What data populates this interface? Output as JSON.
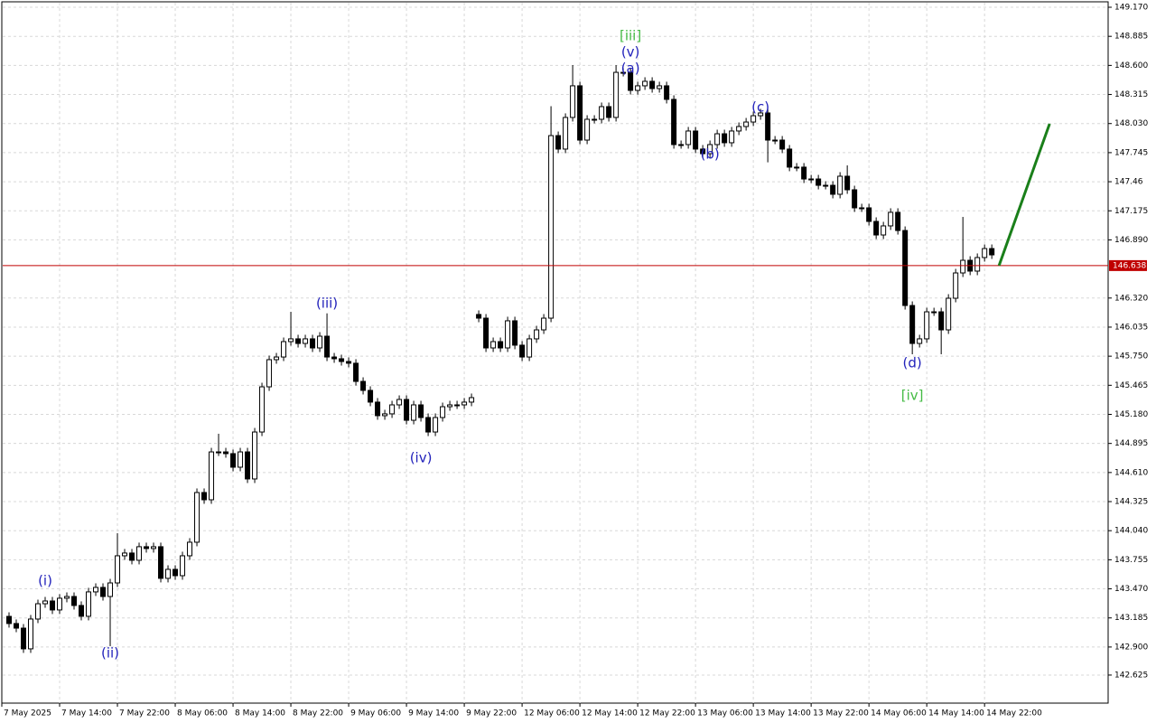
{
  "chart_data": {
    "type": "candlestick",
    "categories": [
      "7 May 2025",
      null,
      null,
      null,
      null,
      null,
      null,
      null,
      "7 May 14:00",
      null,
      null,
      null,
      null,
      null,
      null,
      null,
      "7 May 22:00",
      null,
      null,
      null,
      null,
      null,
      null,
      null,
      "8 May 06:00",
      null,
      null,
      null,
      null,
      null,
      null,
      null,
      "8 May 14:00",
      null,
      null,
      null,
      null,
      null,
      null,
      null,
      "8 May 22:00",
      null,
      null,
      null,
      null,
      null,
      null,
      null,
      "9 May 06:00",
      null,
      null,
      null,
      null,
      null,
      null,
      null,
      "9 May 14:00",
      null,
      null,
      null,
      null,
      null,
      null,
      null,
      "9 May 22:00",
      null,
      null,
      null,
      null,
      null,
      null,
      null,
      "12 May 06:00",
      null,
      null,
      null,
      null,
      null,
      null,
      null,
      "12 May 14:00",
      null,
      null,
      null,
      null,
      null,
      null,
      null,
      "12 May 22:00",
      null,
      null,
      null,
      null,
      null,
      null,
      null,
      "13 May 06:00",
      null,
      null,
      null,
      null,
      null,
      null,
      null,
      "13 May 14:00",
      null,
      null,
      null,
      null,
      null,
      null,
      null,
      "13 May 22:00",
      null,
      null,
      null,
      null,
      null,
      null,
      null,
      "14 May 06:00",
      null,
      null,
      null,
      null,
      null,
      null,
      null,
      "14 May 14:00",
      null,
      null,
      null,
      null,
      null,
      null,
      null,
      "14 May 22:00",
      null
    ],
    "open": [
      null,
      143.2,
      143.13,
      143.085,
      142.882,
      143.174,
      143.324,
      143.351,
      143.263,
      143.378,
      143.395,
      143.307,
      143.201,
      143.44,
      143.484,
      143.395,
      143.528,
      143.794,
      143.821,
      143.75,
      143.883,
      143.865,
      143.883,
      143.573,
      143.661,
      143.599,
      143.794,
      143.927,
      144.414,
      144.343,
      144.812,
      144.812,
      144.795,
      144.662,
      144.812,
      144.547,
      145.007,
      145.45,
      145.716,
      145.742,
      145.893,
      145.92,
      145.875,
      145.92,
      145.831,
      145.946,
      145.742,
      145.725,
      145.698,
      145.681,
      145.503,
      145.415,
      145.3,
      145.167,
      145.185,
      145.273,
      145.326,
      145.122,
      145.273,
      145.149,
      145.007,
      145.149,
      145.255,
      145.273,
      145.273,
      145.3,
      146.159,
      146.123,
      145.831,
      145.893,
      145.831,
      146.097,
      145.858,
      145.742,
      145.92,
      146.008,
      146.123,
      147.912,
      147.78,
      148.09,
      148.4,
      147.868,
      148.072,
      148.072,
      148.196,
      148.09,
      148.532,
      148.532,
      148.355,
      148.4,
      148.444,
      148.373,
      148.4,
      148.267,
      147.824,
      147.824,
      147.957,
      147.78,
      147.735,
      147.824,
      147.93,
      147.842,
      147.957,
      148.001,
      148.045,
      148.107,
      148.134,
      147.868,
      147.868,
      147.78,
      147.603,
      147.603,
      147.487,
      147.487,
      147.425,
      147.425,
      147.337,
      147.514,
      147.381,
      147.204,
      147.204,
      147.071,
      146.938,
      147.027,
      147.16,
      146.982,
      146.247,
      145.875,
      145.92,
      146.185,
      146.185,
      146.008,
      146.318,
      146.566,
      146.69,
      146.584,
      146.717,
      146.805
    ],
    "high": [
      null,
      143.24,
      143.17,
      143.125,
      143.214,
      143.364,
      143.391,
      143.391,
      143.418,
      143.435,
      143.435,
      143.347,
      143.48,
      143.524,
      143.524,
      143.568,
      144.015,
      143.861,
      143.861,
      143.923,
      143.923,
      143.923,
      143.923,
      143.701,
      143.701,
      143.834,
      143.967,
      144.454,
      144.454,
      144.852,
      144.99,
      144.852,
      144.835,
      144.852,
      144.852,
      145.047,
      145.49,
      145.756,
      145.782,
      145.933,
      146.185,
      145.96,
      145.96,
      145.96,
      145.986,
      146.17,
      145.782,
      145.765,
      145.738,
      145.721,
      145.543,
      145.455,
      145.34,
      145.225,
      145.313,
      145.366,
      145.366,
      145.313,
      145.313,
      145.189,
      145.189,
      145.295,
      145.313,
      145.313,
      145.34,
      145.384,
      146.199,
      146.163,
      145.933,
      145.933,
      146.137,
      146.137,
      145.898,
      145.96,
      146.048,
      146.163,
      148.2,
      147.952,
      148.13,
      148.603,
      148.44,
      148.112,
      148.112,
      148.236,
      148.236,
      148.603,
      148.572,
      148.572,
      148.44,
      148.484,
      148.484,
      148.44,
      148.44,
      148.307,
      147.864,
      147.997,
      147.997,
      147.82,
      147.864,
      147.97,
      147.97,
      147.997,
      148.041,
      148.085,
      148.147,
      148.174,
      148.174,
      147.908,
      147.908,
      147.82,
      147.643,
      147.643,
      147.527,
      147.527,
      147.465,
      147.465,
      147.554,
      147.62,
      147.421,
      147.244,
      147.244,
      147.111,
      147.067,
      147.2,
      147.2,
      147.022,
      146.287,
      145.96,
      146.225,
      146.225,
      146.225,
      146.358,
      146.606,
      147.115,
      146.73,
      146.757,
      146.845,
      146.845
    ],
    "low": [
      null,
      143.09,
      143.045,
      142.842,
      142.842,
      143.134,
      143.284,
      143.223,
      143.223,
      143.338,
      143.267,
      143.161,
      143.161,
      143.4,
      143.355,
      142.908,
      143.488,
      143.754,
      143.71,
      143.71,
      143.825,
      143.825,
      143.533,
      143.533,
      143.559,
      143.559,
      143.754,
      143.887,
      144.303,
      144.303,
      144.772,
      144.755,
      144.622,
      144.622,
      144.507,
      144.507,
      144.967,
      145.41,
      145.676,
      145.702,
      145.853,
      145.835,
      145.835,
      145.791,
      145.791,
      145.702,
      145.685,
      145.658,
      145.641,
      145.463,
      145.375,
      145.26,
      145.127,
      145.127,
      145.145,
      145.233,
      145.082,
      145.082,
      145.109,
      144.967,
      144.967,
      145.109,
      145.215,
      145.233,
      145.233,
      145.26,
      146.083,
      145.791,
      145.791,
      145.791,
      145.791,
      145.818,
      145.702,
      145.702,
      145.88,
      145.968,
      146.083,
      147.74,
      147.74,
      148.05,
      147.828,
      147.828,
      148.032,
      148.032,
      148.05,
      148.05,
      148.492,
      148.315,
      148.315,
      148.36,
      148.333,
      148.333,
      148.227,
      147.784,
      147.784,
      147.784,
      147.74,
      147.695,
      147.695,
      147.784,
      147.802,
      147.802,
      147.917,
      147.961,
      148.005,
      148.067,
      147.65,
      147.828,
      147.74,
      147.563,
      147.563,
      147.447,
      147.447,
      147.385,
      147.385,
      147.297,
      147.297,
      147.341,
      147.164,
      147.164,
      147.031,
      146.898,
      146.898,
      146.987,
      146.942,
      146.207,
      145.769,
      145.835,
      145.88,
      146.145,
      145.769,
      145.968,
      146.278,
      146.526,
      146.544,
      146.544,
      146.677,
      146.703
    ],
    "close": [
      null,
      143.13,
      143.085,
      142.882,
      143.174,
      143.324,
      143.351,
      143.263,
      143.378,
      143.395,
      143.307,
      143.201,
      143.44,
      143.484,
      143.395,
      143.528,
      143.794,
      143.821,
      143.75,
      143.883,
      143.865,
      143.883,
      143.573,
      143.661,
      143.599,
      143.794,
      143.927,
      144.414,
      144.343,
      144.812,
      144.812,
      144.795,
      144.662,
      144.812,
      144.547,
      145.007,
      145.45,
      145.716,
      145.742,
      145.893,
      145.92,
      145.875,
      145.92,
      145.831,
      145.946,
      145.742,
      145.725,
      145.698,
      145.681,
      145.503,
      145.415,
      145.3,
      145.167,
      145.185,
      145.273,
      145.326,
      145.122,
      145.273,
      145.149,
      145.007,
      145.149,
      145.255,
      145.273,
      145.273,
      145.3,
      145.344,
      146.123,
      145.831,
      145.893,
      145.831,
      146.097,
      145.858,
      145.742,
      145.92,
      146.008,
      146.123,
      147.912,
      147.78,
      148.09,
      148.4,
      147.868,
      148.072,
      148.072,
      148.196,
      148.09,
      148.532,
      148.532,
      148.355,
      148.4,
      148.444,
      148.373,
      148.4,
      148.267,
      147.824,
      147.824,
      147.957,
      147.78,
      147.735,
      147.824,
      147.93,
      147.842,
      147.957,
      148.001,
      148.045,
      148.107,
      148.134,
      147.868,
      147.868,
      147.78,
      147.603,
      147.603,
      147.487,
      147.487,
      147.425,
      147.425,
      147.337,
      147.514,
      147.381,
      147.204,
      147.204,
      147.071,
      146.938,
      147.027,
      147.16,
      146.982,
      146.247,
      145.875,
      145.92,
      146.185,
      146.185,
      146.008,
      146.318,
      146.566,
      146.69,
      146.584,
      146.717,
      146.805,
      146.743
    ],
    "up_color": "#ffffff",
    "down_color": "#000000",
    "xlim": [
      -0.25,
      153.1
    ],
    "ylim": [
      142.35,
      149.241
    ],
    "yticks": [
      {
        "value": 149.17,
        "label": "149.170"
      },
      148.885,
      {
        "value": 148.6,
        "label": "148.600"
      },
      148.315,
      {
        "value": 148.03,
        "label": "148.030"
      },
      147.745,
      147.46,
      147.175,
      {
        "value": 146.89,
        "label": "146.890"
      },
      {
        "value": 146.32,
        "label": "146.320"
      },
      146.035,
      {
        "value": 145.75,
        "label": "145.750"
      },
      145.465,
      {
        "value": 145.18,
        "label": "145.180"
      },
      144.895,
      {
        "value": 144.61,
        "label": "144.610"
      },
      144.325,
      {
        "value": 144.04,
        "label": "144.040"
      },
      143.755,
      {
        "value": 143.47,
        "label": "143.470"
      },
      143.185,
      {
        "value": 142.9,
        "label": "142.900"
      },
      142.625
    ],
    "grid": true,
    "current_price": {
      "value": 146.638,
      "color": "#c00000"
    },
    "forecast": {
      "x": [
        138,
        145
      ],
      "y": [
        146.638,
        148.028
      ],
      "color": "#1a7f1a"
    },
    "annotations": [
      {
        "text": "(i)",
        "x": 6,
        "y": 143.546,
        "color": "#2222bb"
      },
      {
        "text": "(ii)",
        "x": 15,
        "y": 142.838,
        "color": "#2222bb"
      },
      {
        "text": "(iii)",
        "x": 45,
        "y": 146.265,
        "color": "#2222bb"
      },
      {
        "text": "(iv)",
        "x": 58,
        "y": 144.751,
        "color": "#2222bb"
      },
      {
        "text": "[iii]",
        "x": 87,
        "y": 148.887,
        "color": "#44bb44"
      },
      {
        "text": "(v)",
        "x": 87,
        "y": 148.727,
        "color": "#2222bb"
      },
      {
        "text": "(a)",
        "x": 87,
        "y": 148.568,
        "color": "#2222bb"
      },
      {
        "text": "(b)",
        "x": 98,
        "y": 147.726,
        "color": "#2222bb"
      },
      {
        "text": "(c)",
        "x": 105,
        "y": 148.187,
        "color": "#2222bb"
      },
      {
        "text": "(d)",
        "x": 126,
        "y": 145.681,
        "color": "#2222bb"
      },
      {
        "text": "[iv]",
        "x": 126,
        "y": 145.362,
        "color": "#44bb44"
      }
    ]
  }
}
